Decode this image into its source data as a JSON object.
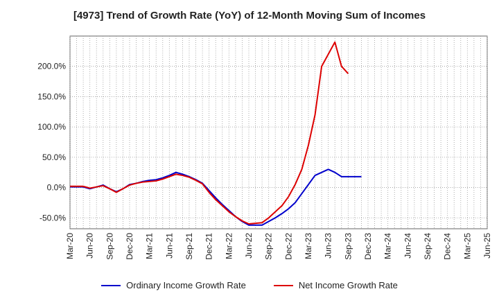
{
  "chart_data": {
    "type": "line",
    "title": "[4973]  Trend of Growth Rate (YoY) of 12-Month Moving Sum of Incomes",
    "xlabel": "",
    "ylabel": "",
    "x_tick_labels": [
      "Mar-20",
      "Jun-20",
      "Sep-20",
      "Dec-20",
      "Mar-21",
      "Jun-21",
      "Sep-21",
      "Dec-21",
      "Mar-22",
      "Jun-22",
      "Sep-22",
      "Dec-22",
      "Mar-23",
      "Jun-23",
      "Sep-23",
      "Dec-23",
      "Mar-24",
      "Jun-24",
      "Sep-24",
      "Dec-24",
      "Mar-25",
      "Jun-25"
    ],
    "y_ticks": [
      -50,
      0,
      50,
      100,
      150,
      200
    ],
    "y_tick_labels": [
      "-50.0%",
      "0.0%",
      "50.0%",
      "100.0%",
      "150.0%",
      "200.0%"
    ],
    "ylim": [
      -68,
      250
    ],
    "grid": true,
    "legend_position": "bottom",
    "series": [
      {
        "name": "Ordinary Income Growth Rate",
        "color": "#0000cc",
        "values": [
          [
            0,
            1
          ],
          [
            1,
            1
          ],
          [
            2,
            1
          ],
          [
            3,
            -2
          ],
          [
            4,
            1
          ],
          [
            5,
            4
          ],
          [
            6,
            -2
          ],
          [
            7,
            -7
          ],
          [
            8,
            -2
          ],
          [
            9,
            5
          ],
          [
            10,
            7
          ],
          [
            11,
            10
          ],
          [
            12,
            12
          ],
          [
            13,
            13
          ],
          [
            14,
            16
          ],
          [
            15,
            20
          ],
          [
            16,
            25
          ],
          [
            17,
            22
          ],
          [
            18,
            18
          ],
          [
            19,
            13
          ],
          [
            20,
            7
          ],
          [
            21,
            -5
          ],
          [
            22,
            -17
          ],
          [
            23,
            -28
          ],
          [
            24,
            -38
          ],
          [
            25,
            -48
          ],
          [
            26,
            -56
          ],
          [
            27,
            -62
          ],
          [
            28,
            -62
          ],
          [
            29,
            -62
          ],
          [
            30,
            -56
          ],
          [
            31,
            -50
          ],
          [
            32,
            -43
          ],
          [
            33,
            -35
          ],
          [
            34,
            -25
          ],
          [
            35,
            -10
          ],
          [
            36,
            5
          ],
          [
            37,
            20
          ],
          [
            38,
            25
          ],
          [
            39,
            30
          ],
          [
            40,
            25
          ],
          [
            41,
            18
          ],
          [
            42,
            18
          ],
          [
            43,
            18
          ],
          [
            44,
            18
          ]
        ]
      },
      {
        "name": "Net Income Growth Rate",
        "color": "#dd0000",
        "values": [
          [
            0,
            2
          ],
          [
            1,
            2
          ],
          [
            2,
            2
          ],
          [
            3,
            -1
          ],
          [
            4,
            1
          ],
          [
            5,
            3
          ],
          [
            6,
            -2
          ],
          [
            7,
            -8
          ],
          [
            8,
            -2
          ],
          [
            9,
            4
          ],
          [
            10,
            7
          ],
          [
            11,
            9
          ],
          [
            12,
            10
          ],
          [
            13,
            11
          ],
          [
            14,
            14
          ],
          [
            15,
            18
          ],
          [
            16,
            22
          ],
          [
            17,
            20
          ],
          [
            18,
            17
          ],
          [
            19,
            12
          ],
          [
            20,
            6
          ],
          [
            21,
            -8
          ],
          [
            22,
            -20
          ],
          [
            23,
            -30
          ],
          [
            24,
            -40
          ],
          [
            25,
            -48
          ],
          [
            26,
            -55
          ],
          [
            27,
            -60
          ],
          [
            28,
            -59
          ],
          [
            29,
            -58
          ],
          [
            30,
            -50
          ],
          [
            31,
            -40
          ],
          [
            32,
            -30
          ],
          [
            33,
            -15
          ],
          [
            34,
            5
          ],
          [
            35,
            30
          ],
          [
            36,
            70
          ],
          [
            37,
            120
          ],
          [
            38,
            200
          ],
          [
            39,
            220
          ],
          [
            40,
            240
          ],
          [
            41,
            200
          ],
          [
            42,
            188
          ]
        ]
      }
    ]
  }
}
